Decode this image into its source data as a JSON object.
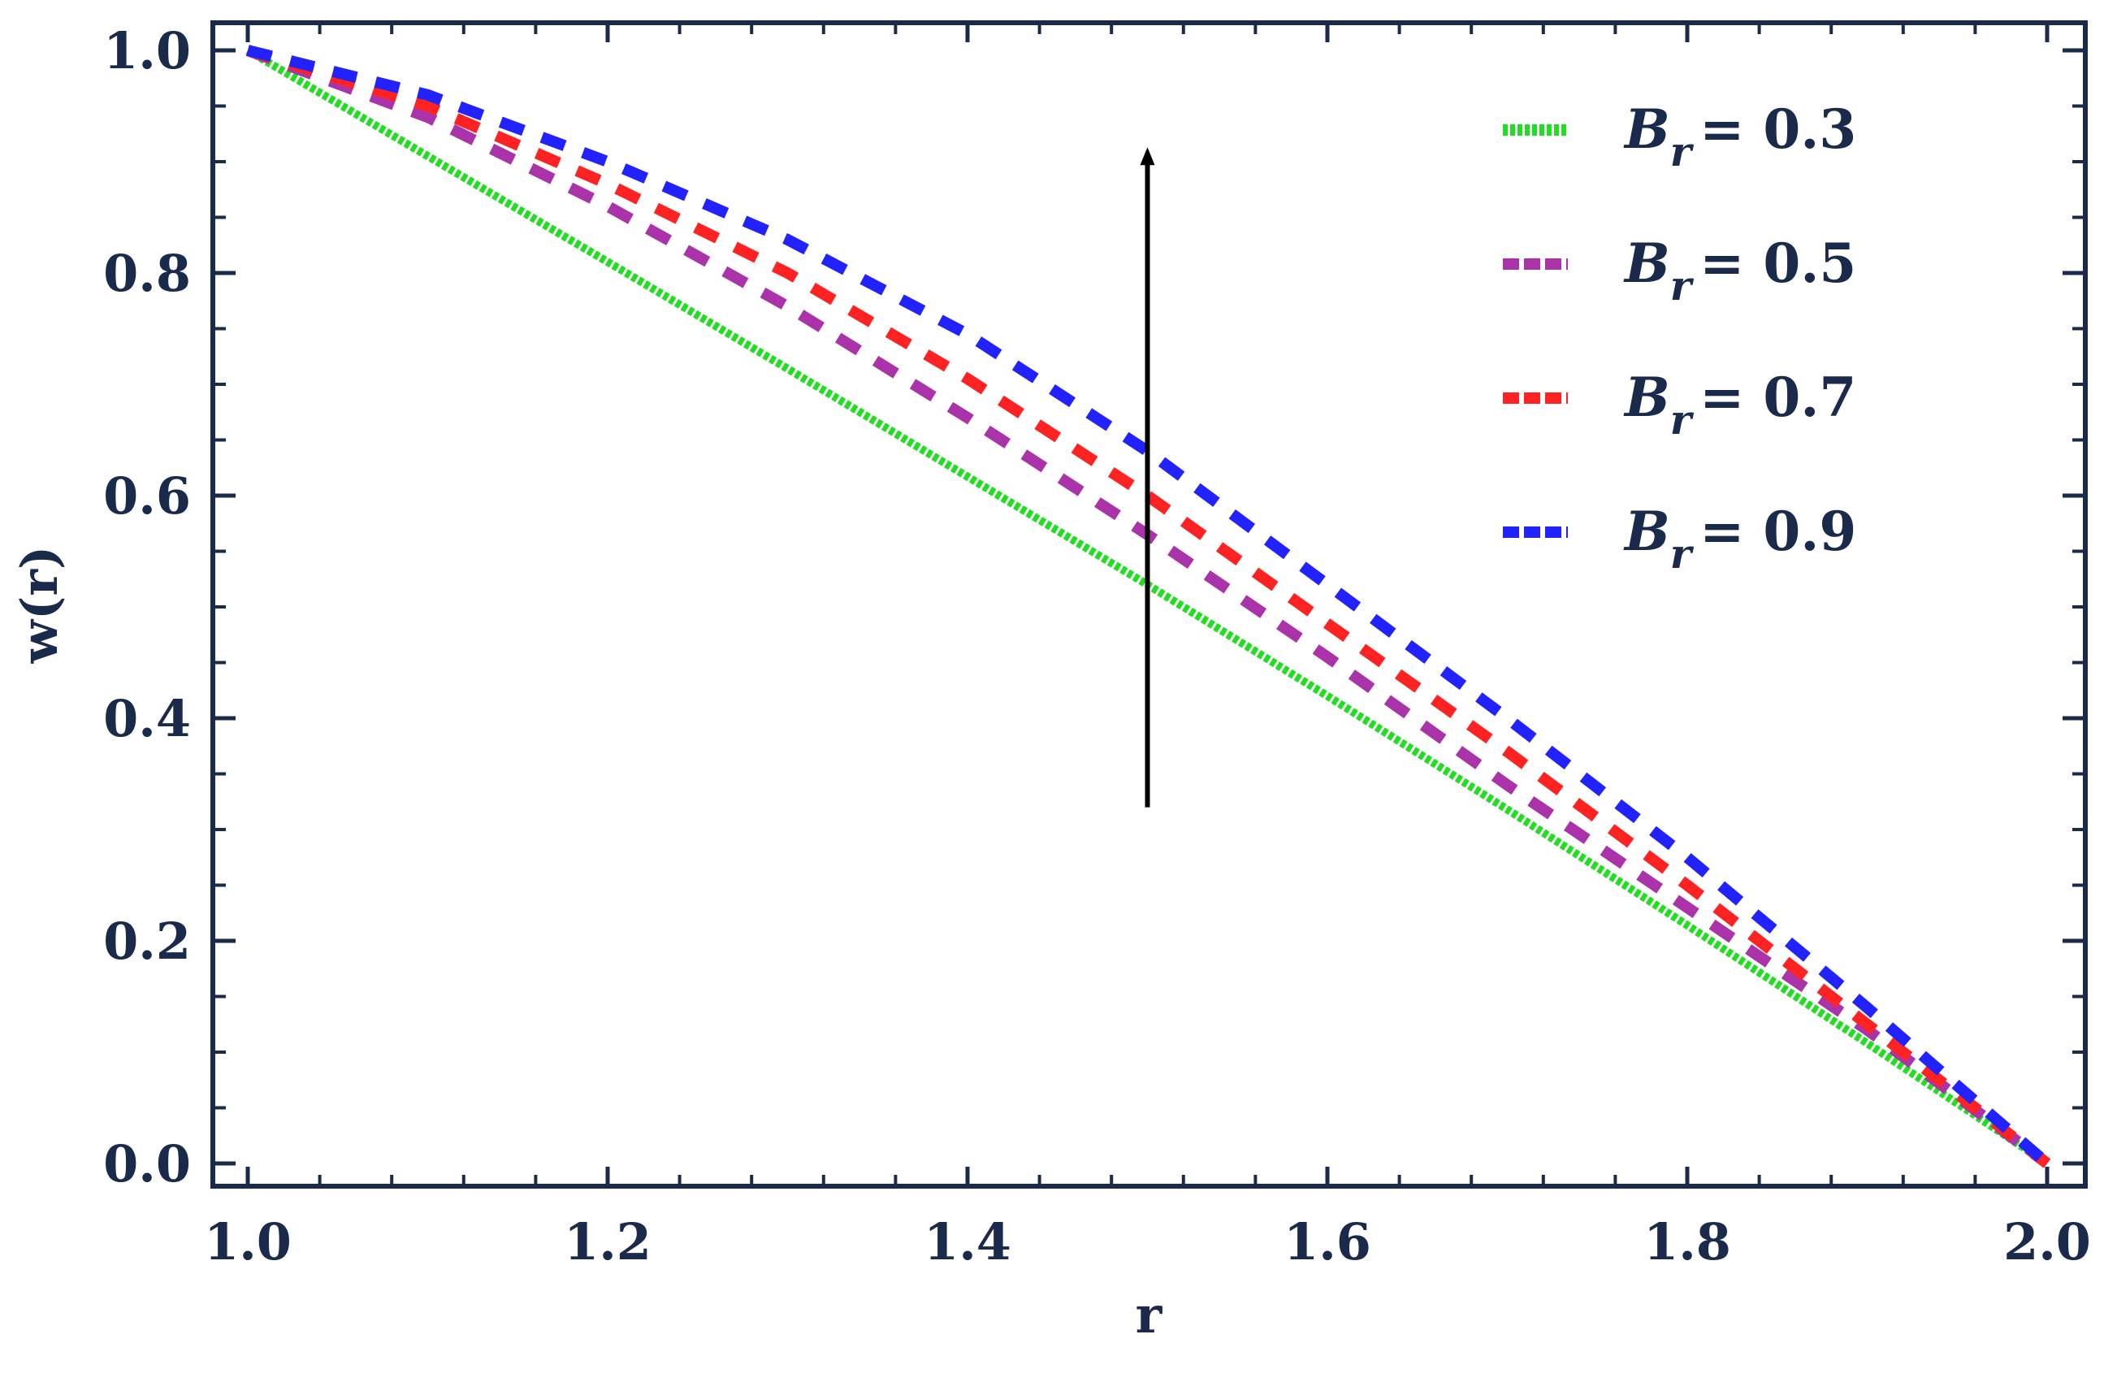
{
  "chart_data": {
    "type": "line",
    "title": "",
    "xlabel": "r",
    "ylabel": "w(r)",
    "xlim": [
      1.0,
      2.0
    ],
    "ylim": [
      0.0,
      1.0
    ],
    "x_ticks": [
      "1.0",
      "1.2",
      "1.4",
      "1.6",
      "1.8",
      "2.0"
    ],
    "y_ticks": [
      "0.0",
      "0.2",
      "0.4",
      "0.6",
      "0.8",
      "1.0"
    ],
    "grid": false,
    "legend_position": "top-right",
    "x": [
      1.0,
      1.1,
      1.2,
      1.3,
      1.4,
      1.5,
      1.6,
      1.7,
      1.8,
      1.9,
      2.0
    ],
    "series": [
      {
        "name": "B_r = 0.3",
        "symbol": "B",
        "subscript": "r",
        "value_text": "= 0.3",
        "color": "#22dd22",
        "style": "dotted",
        "values": [
          1.0,
          0.905,
          0.81,
          0.714,
          0.617,
          0.52,
          0.42,
          0.318,
          0.214,
          0.108,
          0.0
        ]
      },
      {
        "name": "B_r = 0.5",
        "symbol": "B",
        "subscript": "r",
        "value_text": "= 0.5",
        "color": "#aa33aa",
        "style": "dashed",
        "values": [
          1.0,
          0.94,
          0.86,
          0.77,
          0.67,
          0.565,
          0.455,
          0.34,
          0.23,
          0.12,
          0.0
        ]
      },
      {
        "name": "B_r = 0.7",
        "symbol": "B",
        "subscript": "r",
        "value_text": "= 0.7",
        "color": "#ff2222",
        "style": "dashed",
        "values": [
          1.0,
          0.95,
          0.88,
          0.8,
          0.705,
          0.6,
          0.485,
          0.37,
          0.25,
          0.125,
          0.0
        ]
      },
      {
        "name": "B_r = 0.9",
        "symbol": "B",
        "subscript": "r",
        "value_text": "= 0.9",
        "color": "#2222ff",
        "style": "dashed",
        "values": [
          1.0,
          0.96,
          0.9,
          0.83,
          0.745,
          0.64,
          0.52,
          0.4,
          0.275,
          0.14,
          0.0
        ]
      }
    ],
    "annotation": {
      "type": "arrow",
      "x": 1.5,
      "y_from": 0.32,
      "y_to": 0.91,
      "color": "#000000"
    }
  }
}
